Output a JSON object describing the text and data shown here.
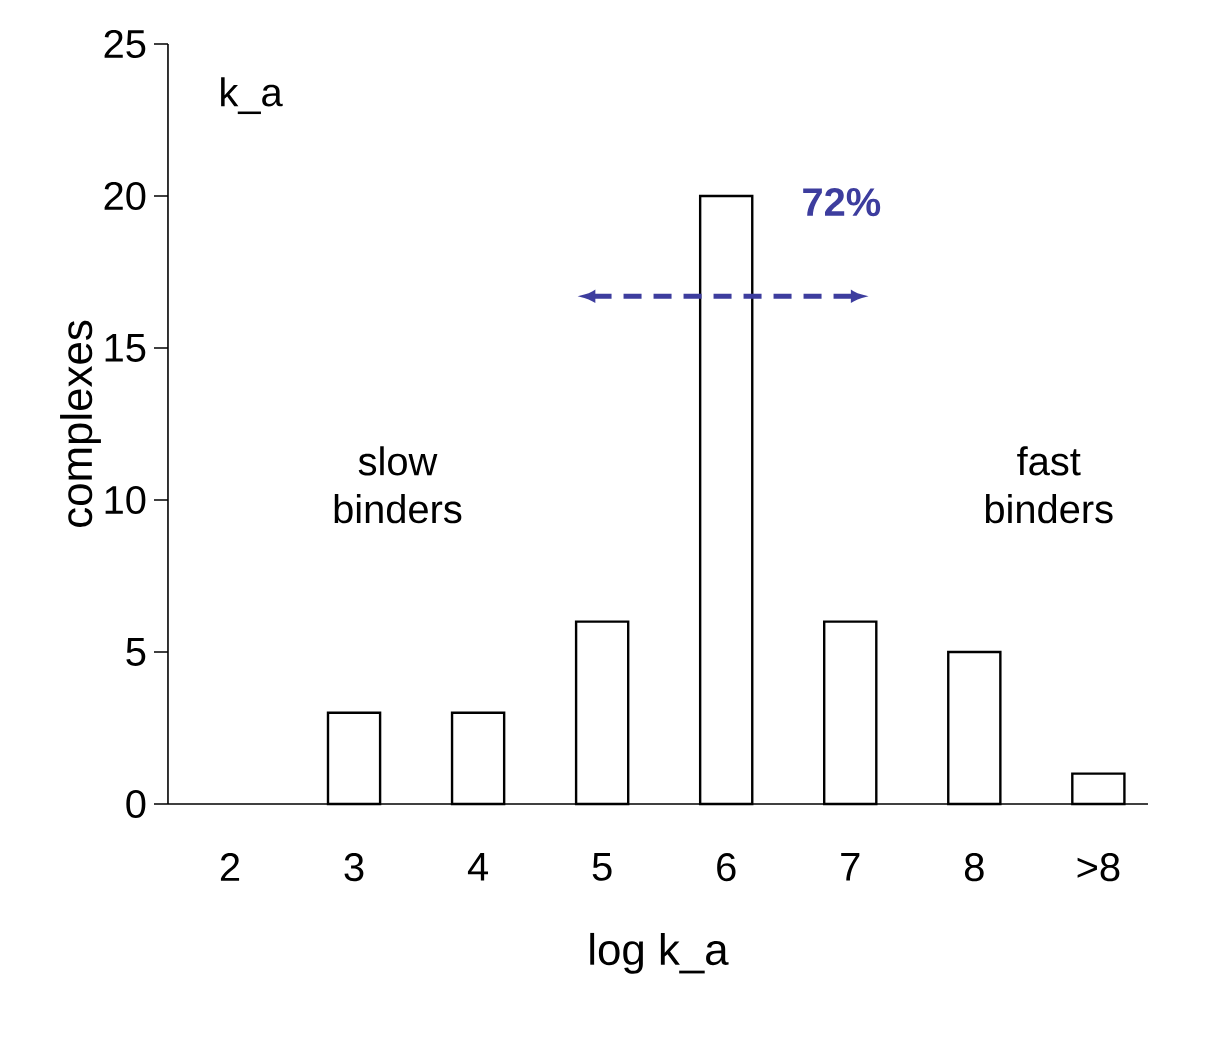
{
  "chart_data": {
    "type": "bar",
    "xlabel": "log k_a",
    "ylabel": "complexes",
    "categories": [
      "2",
      "3",
      "4",
      "5",
      "6",
      "7",
      "8",
      ">8"
    ],
    "values": [
      0,
      3,
      3,
      6,
      20,
      6,
      5,
      1
    ],
    "color": "#ffffff",
    "ylim": [
      0,
      25
    ],
    "yticks": [
      0,
      5,
      10,
      15,
      20,
      25
    ],
    "annotations": [
      "k_a",
      "72%",
      "slow binders",
      "fast binders"
    ]
  }
}
